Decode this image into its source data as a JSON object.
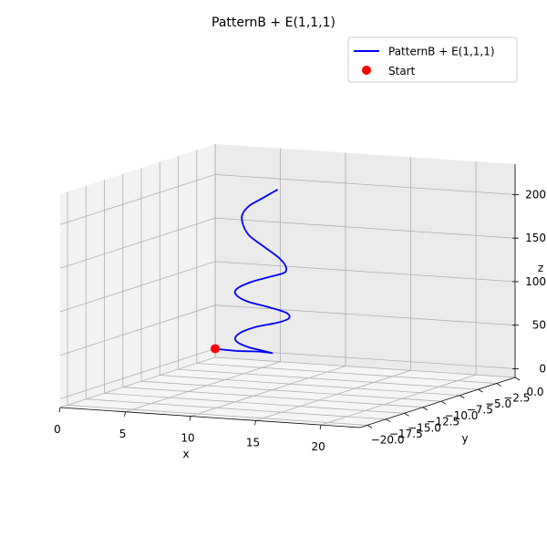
{
  "chart_data": {
    "type": "line",
    "projection": "3d",
    "title": "PatternB + E(1,1,1)",
    "xlabel": "x",
    "ylabel": "y",
    "zlabel": "z",
    "xlim": [
      0,
      23
    ],
    "ylim": [
      -21,
      0
    ],
    "zlim": [
      -10,
      235
    ],
    "x_ticks": [
      "0",
      "5",
      "10",
      "15",
      "20"
    ],
    "y_ticks": [
      "0.0",
      "−2.5",
      "−5.0",
      "−7.5",
      "−10.0",
      "−12.5",
      "−15.0",
      "−17.5",
      "−20.0"
    ],
    "z_ticks": [
      "0",
      "50",
      "100",
      "150",
      "200"
    ],
    "grid": true,
    "legend_placement": "top-right",
    "series": [
      {
        "name": "PatternB + E(1,1,1)",
        "color": "#0000ff",
        "points": [
          [
            0,
            0,
            0
          ],
          [
            1,
            -0.3,
            0.3
          ],
          [
            2,
            -0.6,
            1.0
          ],
          [
            3,
            -0.9,
            2.5
          ],
          [
            4,
            -1.2,
            4.0
          ],
          [
            5,
            -1.5,
            4.5
          ],
          [
            5.3,
            -1.7,
            5.0
          ],
          [
            4.6,
            -1.9,
            8.0
          ],
          [
            3.8,
            -2.1,
            11.0
          ],
          [
            3.1,
            -2.3,
            16.0
          ],
          [
            3.0,
            -2.6,
            22.0
          ],
          [
            3.6,
            -2.9,
            30.0
          ],
          [
            5.0,
            -3.2,
            39.0
          ],
          [
            6.7,
            -3.5,
            46.0
          ],
          [
            7.8,
            -3.8,
            53.0
          ],
          [
            7.8,
            -4.1,
            60.0
          ],
          [
            6.7,
            -4.4,
            66.0
          ],
          [
            5.2,
            -4.7,
            72.0
          ],
          [
            4.5,
            -5.0,
            79.0
          ],
          [
            4.6,
            -5.3,
            87.0
          ],
          [
            5.8,
            -5.6,
            97.0
          ],
          [
            7.5,
            -5.9,
            106.0
          ],
          [
            8.8,
            -6.2,
            113.0
          ],
          [
            9.1,
            -6.5,
            121.0
          ],
          [
            8.8,
            -6.8,
            131.0
          ],
          [
            7.8,
            -7.1,
            144.0
          ],
          [
            6.8,
            -7.4,
            157.0
          ],
          [
            6.5,
            -7.7,
            170.0
          ],
          [
            6.6,
            -8.0,
            182.0
          ],
          [
            7.3,
            -8.3,
            194.0
          ],
          [
            8.4,
            -8.6,
            204.0
          ],
          [
            9.3,
            -8.9,
            212.0
          ],
          [
            10.0,
            -9.2,
            218.0
          ]
        ]
      }
    ],
    "start_point": {
      "name": "Start",
      "color": "#ff0000",
      "x": 0,
      "y": 0,
      "z": 0
    }
  }
}
